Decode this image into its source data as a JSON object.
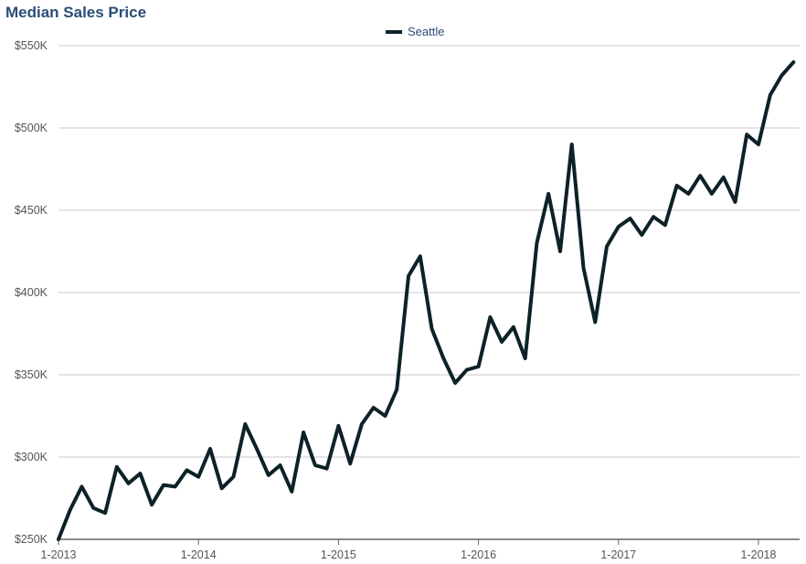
{
  "chart_data": {
    "type": "line",
    "title": "Median Sales Price",
    "xlabel": "",
    "ylabel": "",
    "ylim": [
      250000,
      550000
    ],
    "y_ticks": [
      250000,
      300000,
      350000,
      400000,
      450000,
      500000,
      550000
    ],
    "y_tick_labels": [
      "$250K",
      "$300K",
      "$350K",
      "$400K",
      "$450K",
      "$500K",
      "$550K"
    ],
    "x_tick_labels": [
      "1-2013",
      "1-2014",
      "1-2015",
      "1-2016",
      "1-2017",
      "1-2018"
    ],
    "x_tick_months": [
      "2013-01",
      "2014-01",
      "2015-01",
      "2016-01",
      "2017-01",
      "2018-01"
    ],
    "grid": "horizontal",
    "legend": "top-center",
    "x": [
      "2013-01",
      "2013-02",
      "2013-03",
      "2013-04",
      "2013-05",
      "2013-06",
      "2013-07",
      "2013-08",
      "2013-09",
      "2013-10",
      "2013-11",
      "2013-12",
      "2014-01",
      "2014-02",
      "2014-03",
      "2014-04",
      "2014-05",
      "2014-06",
      "2014-07",
      "2014-08",
      "2014-09",
      "2014-10",
      "2014-11",
      "2014-12",
      "2015-01",
      "2015-02",
      "2015-03",
      "2015-04",
      "2015-05",
      "2015-06",
      "2015-07",
      "2015-08",
      "2015-09",
      "2015-10",
      "2015-11",
      "2015-12",
      "2016-01",
      "2016-02",
      "2016-03",
      "2016-04",
      "2016-05",
      "2016-06",
      "2016-07",
      "2016-08",
      "2016-09",
      "2016-10",
      "2016-11",
      "2016-12",
      "2017-01",
      "2017-02",
      "2017-03",
      "2017-04",
      "2017-05",
      "2017-06",
      "2017-07",
      "2017-08",
      "2017-09",
      "2017-10",
      "2017-11",
      "2017-12",
      "2018-01",
      "2018-02",
      "2018-03",
      "2018-04"
    ],
    "series": [
      {
        "name": "Seattle",
        "color": "#0d2227",
        "values": [
          250000,
          268000,
          282000,
          269000,
          266000,
          294000,
          284000,
          290000,
          271000,
          283000,
          282000,
          292000,
          288000,
          305000,
          281000,
          288000,
          320000,
          305000,
          289000,
          295000,
          279000,
          315000,
          295000,
          293000,
          319000,
          296000,
          320000,
          330000,
          325000,
          341000,
          410000,
          422000,
          378000,
          360000,
          345000,
          353000,
          355000,
          385000,
          370000,
          379000,
          360000,
          430000,
          460000,
          425000,
          490000,
          415000,
          382000,
          428000,
          440000,
          445000,
          435000,
          446000,
          441000,
          465000,
          460000,
          471000,
          460000,
          470000,
          455000,
          496000,
          490000,
          520000,
          532000,
          540000
        ]
      }
    ]
  }
}
